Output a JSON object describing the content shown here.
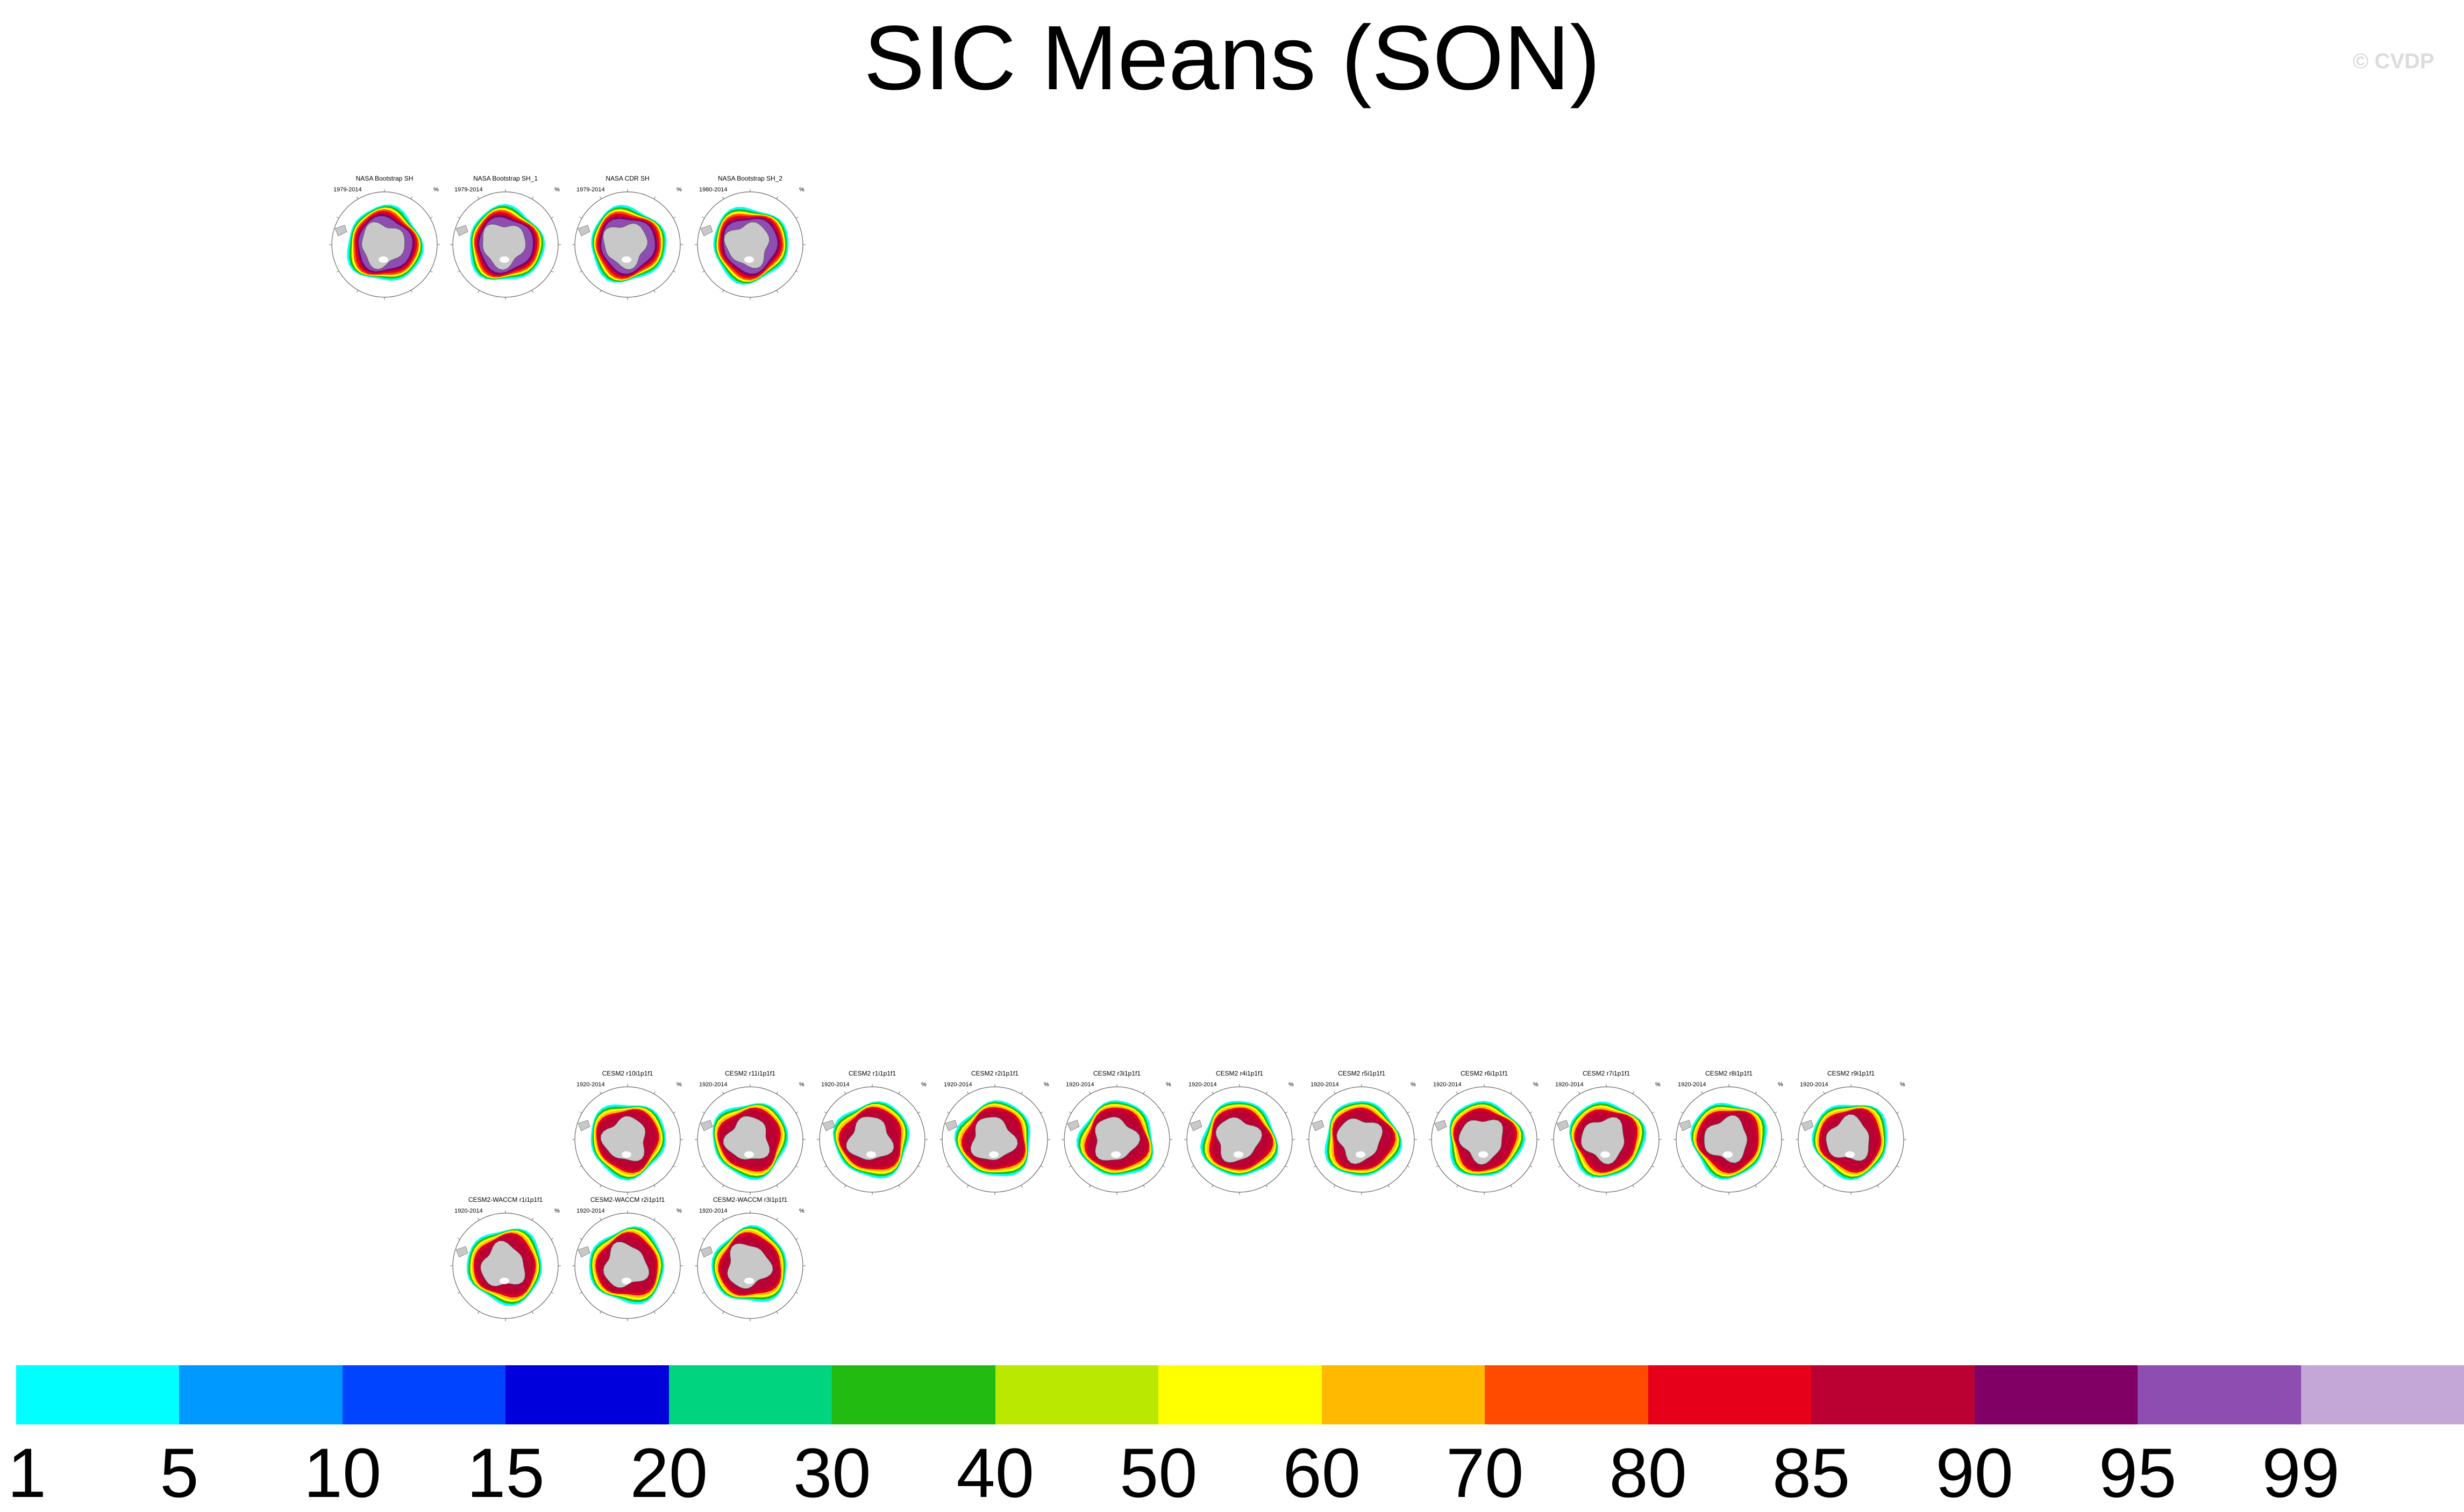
{
  "title": "SIC Means (SON)",
  "credit": "© CVDP",
  "units": "%",
  "panels": [
    {
      "name": "NASA Bootstrap SH",
      "years": "1979-2014"
    },
    {
      "name": "NASA Bootstrap SH_1",
      "years": "1979-2014"
    },
    {
      "name": "NASA CDR SH",
      "years": "1979-2014"
    },
    {
      "name": "NASA Bootstrap SH_2",
      "years": "1980-2014"
    },
    {
      "name": "CESM2 r10i1p1f1",
      "years": "1920-2014"
    },
    {
      "name": "CESM2 r11i1p1f1",
      "years": "1920-2014"
    },
    {
      "name": "CESM2 r1i1p1f1",
      "years": "1920-2014"
    },
    {
      "name": "CESM2 r2i1p1f1",
      "years": "1920-2014"
    },
    {
      "name": "CESM2 r3i1p1f1",
      "years": "1920-2014"
    },
    {
      "name": "CESM2 r4i1p1f1",
      "years": "1920-2014"
    },
    {
      "name": "CESM2 r5i1p1f1",
      "years": "1920-2014"
    },
    {
      "name": "CESM2 r6i1p1f1",
      "years": "1920-2014"
    },
    {
      "name": "CESM2 r7i1p1f1",
      "years": "1920-2014"
    },
    {
      "name": "CESM2 r8i1p1f1",
      "years": "1920-2014"
    },
    {
      "name": "CESM2 r9i1p1f1",
      "years": "1920-2014"
    },
    {
      "name": "CESM2-WACCM r1i1p1f1",
      "years": "1920-2014"
    },
    {
      "name": "CESM2-WACCM r2i1p1f1",
      "years": "1920-2014"
    },
    {
      "name": "CESM2-WACCM r3i1p1f1",
      "years": "1920-2014"
    }
  ],
  "colorbar": {
    "levels": [
      "1",
      "5",
      "10",
      "15",
      "20",
      "30",
      "40",
      "50",
      "60",
      "70",
      "80",
      "85",
      "90",
      "95",
      "99"
    ],
    "colors": [
      "#00ffff",
      "#0099ff",
      "#0044ff",
      "#0000dd",
      "#00d47f",
      "#22bb11",
      "#bbe800",
      "#ffff00",
      "#ffba00",
      "#ff4b00",
      "#e6001a",
      "#bb0033",
      "#800066",
      "#8e4db0",
      "#c4a6d7"
    ]
  },
  "chart_data": {
    "type": "heatmap",
    "title": "SIC Means (SON)",
    "colorbar_levels": [
      1,
      5,
      10,
      15,
      20,
      30,
      40,
      50,
      60,
      70,
      80,
      85,
      90,
      95,
      99
    ],
    "units": "%"
  }
}
